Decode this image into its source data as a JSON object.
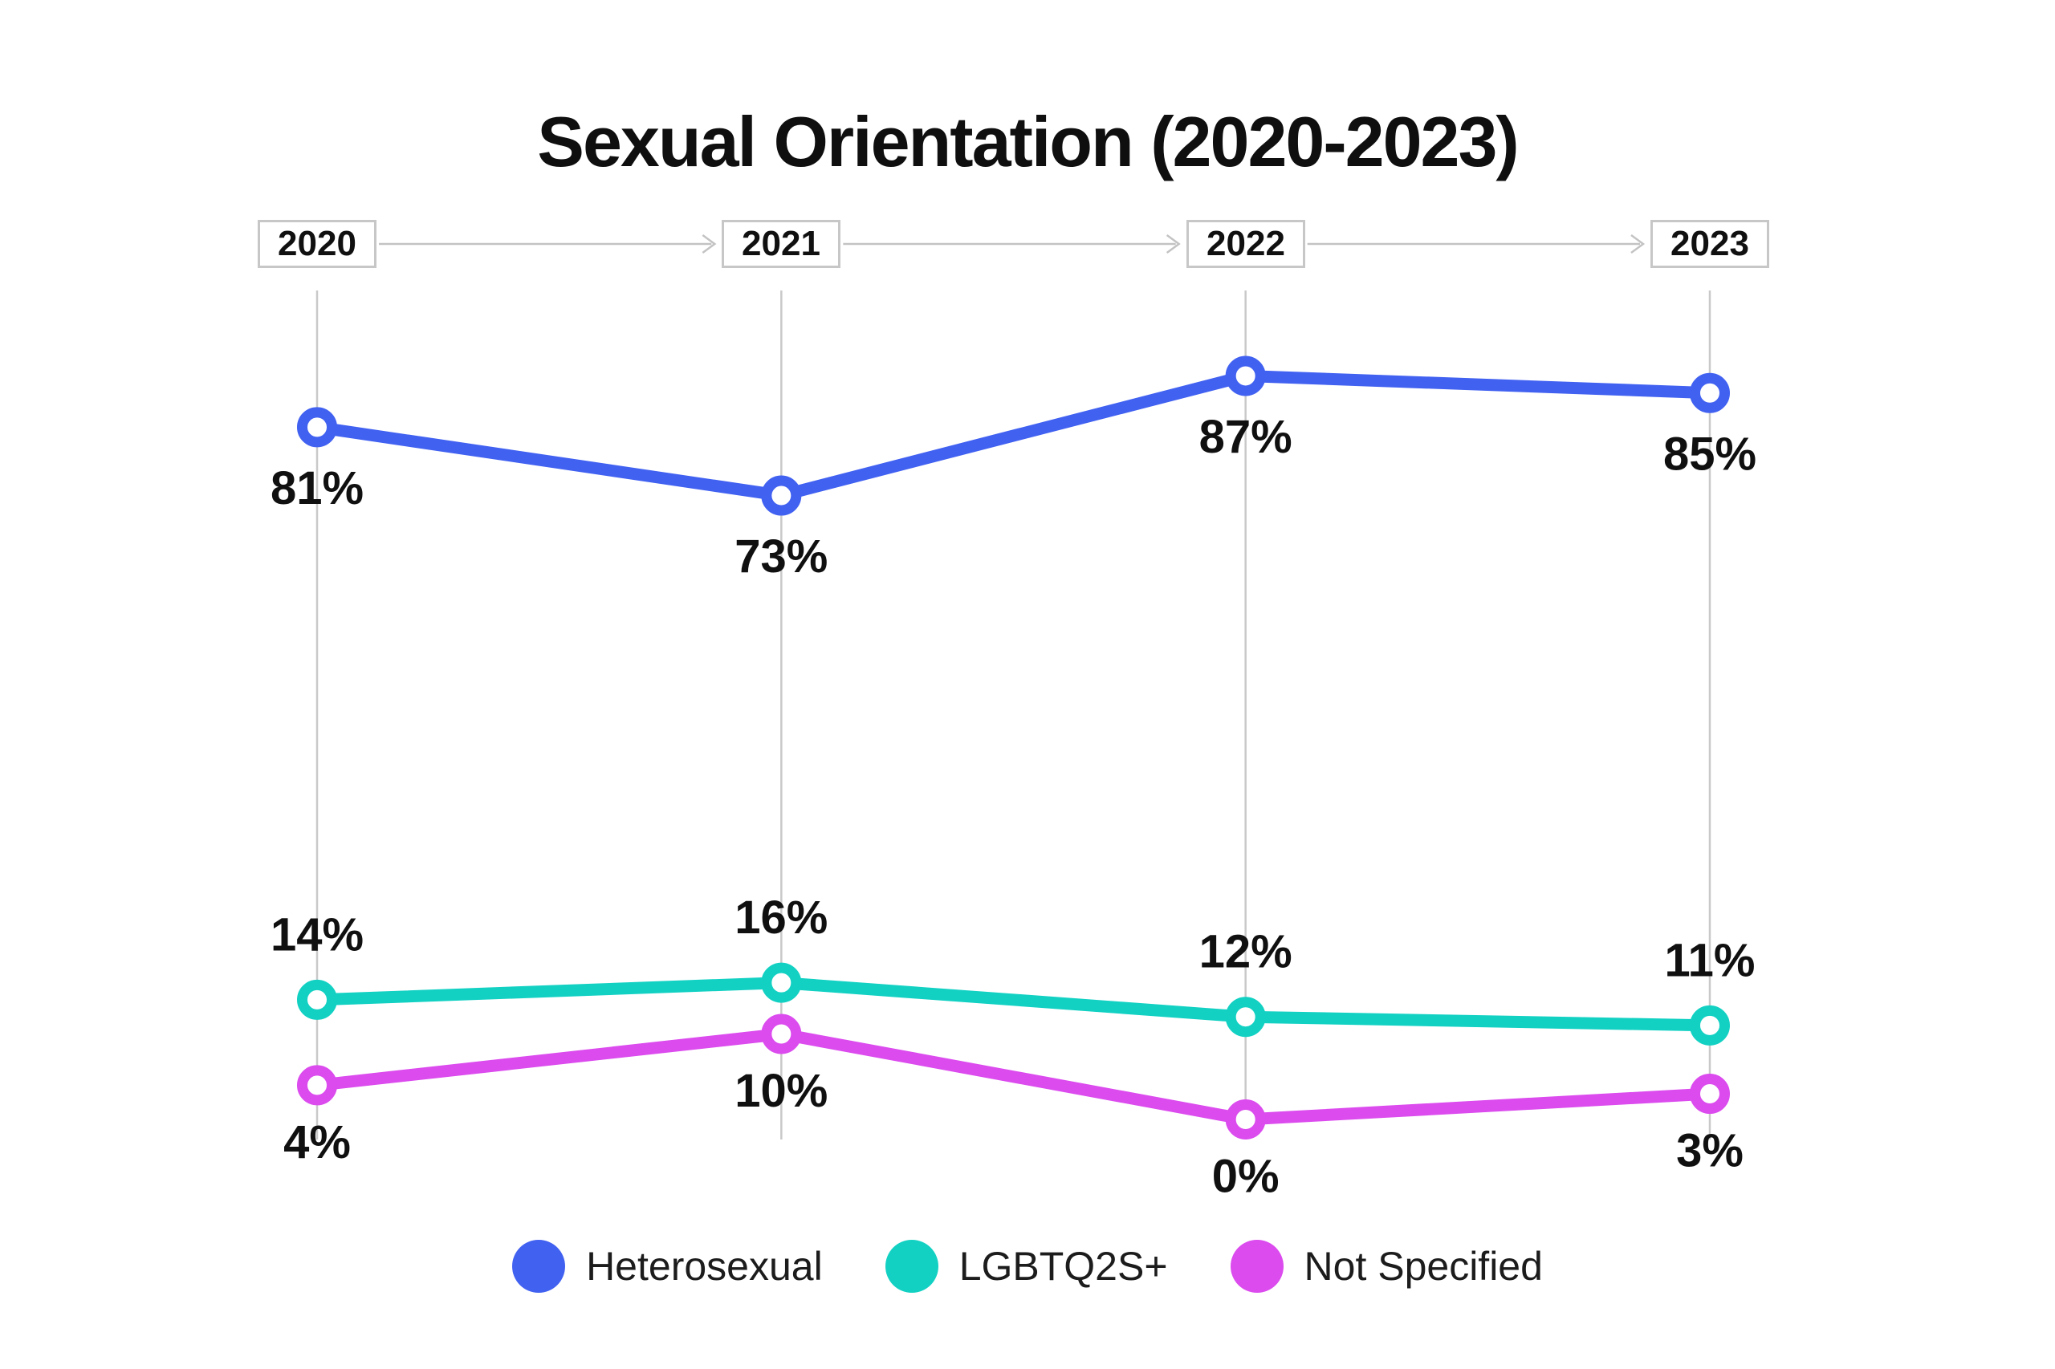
{
  "title": "Sexual Orientation (2020-2023)",
  "chart_data": {
    "type": "line",
    "x_labels": [
      "2020",
      "2021",
      "2022",
      "2023"
    ],
    "series": [
      {
        "name": "Heterosexual",
        "color": "#4161F1",
        "values": [
          81,
          73,
          87,
          85
        ],
        "value_labels": [
          "81%",
          "73%",
          "87%",
          "85%"
        ],
        "label_position": "below"
      },
      {
        "name": "LGBTQ2S+",
        "color": "#12D1C3",
        "values": [
          14,
          16,
          12,
          11
        ],
        "value_labels": [
          "14%",
          "16%",
          "12%",
          "11%"
        ],
        "label_position": "above"
      },
      {
        "name": "Not Specified",
        "color": "#DB4BEE",
        "values": [
          4,
          10,
          0,
          3
        ],
        "value_labels": [
          "4%",
          "10%",
          "0%",
          "3%"
        ],
        "label_position": "below"
      }
    ],
    "value_suffix": "%",
    "ylim": [
      0,
      100
    ],
    "grid": "vertical-gridlines",
    "gridline_color": "#c9c9c9",
    "timeline_arrow_color": "#c3c3c3",
    "marker_style": "open-circle",
    "legend_position": "bottom",
    "background_color": "#ffffff",
    "text_color": "#101010"
  }
}
